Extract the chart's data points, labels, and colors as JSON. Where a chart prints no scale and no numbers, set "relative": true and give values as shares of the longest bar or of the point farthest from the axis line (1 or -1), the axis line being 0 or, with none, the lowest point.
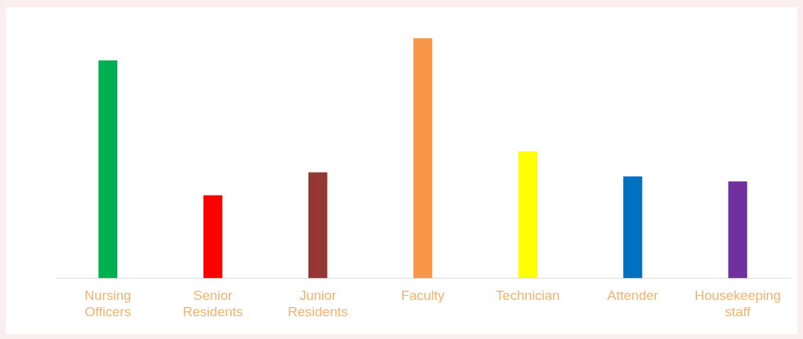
{
  "chart_data": {
    "type": "bar",
    "relative": true,
    "categories": [
      "Nursing Officers",
      "Senior Residents",
      "Junior Residents",
      "Faculty",
      "Technician",
      "Attender",
      "Housekeeping staff"
    ],
    "values": [
      0.907,
      0.345,
      0.441,
      1,
      0.528,
      0.424,
      0.403
    ],
    "colors": [
      "#00b050",
      "#ff0000",
      "#953735",
      "#f79646",
      "#ffff00",
      "#0070c0",
      "#7030a0"
    ],
    "grid": false,
    "legend": false
  }
}
